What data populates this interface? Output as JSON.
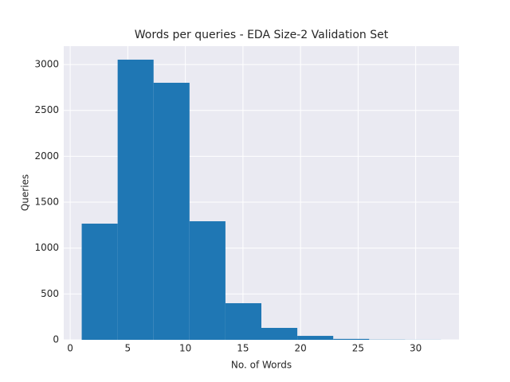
{
  "chart_data": {
    "type": "histogram",
    "title": "Words per queries - EDA Size-2 Validation Set",
    "x_label": "No. of Words",
    "y_label": "Queries",
    "bins": [
      1,
      4.12,
      7.24,
      10.36,
      13.48,
      16.6,
      19.72,
      22.84,
      25.96,
      29.08,
      32.2
    ],
    "counts": [
      1266,
      3053,
      2801,
      1292,
      399,
      130,
      43,
      10,
      2,
      1
    ],
    "color": "#1f77b4",
    "xlim": [
      -0.56,
      33.76
    ],
    "xticks": [
      0,
      5,
      10,
      15,
      20,
      25,
      30
    ],
    "ylim": [
      0,
      3200
    ],
    "yticks": [
      0,
      500,
      1000,
      1500,
      2000,
      2500,
      3000
    ],
    "grid": true
  }
}
